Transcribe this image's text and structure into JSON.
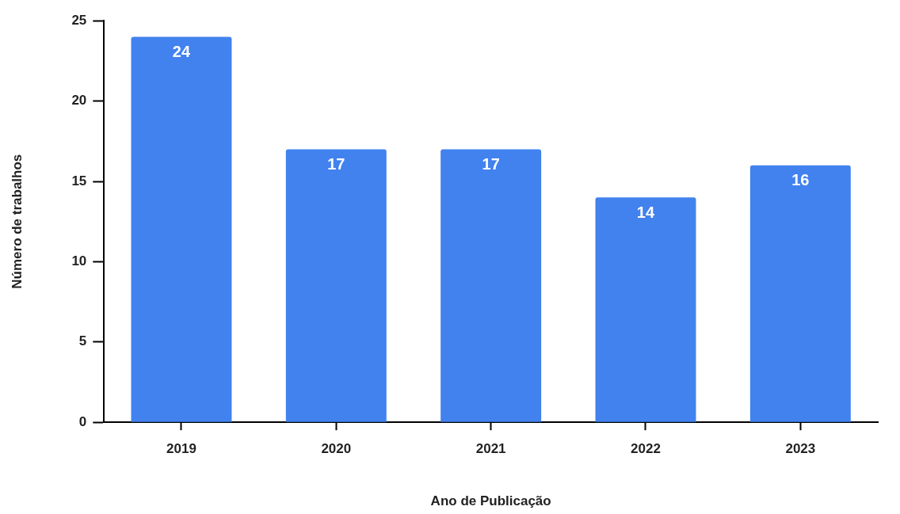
{
  "chart_data": {
    "type": "bar",
    "xlabel": "Ano de Publicação",
    "ylabel": "Número de trabalhos",
    "categories": [
      "2019",
      "2020",
      "2021",
      "2022",
      "2023"
    ],
    "values": [
      24,
      17,
      17,
      14,
      16
    ],
    "color": "#4282ef",
    "ylim": [
      0,
      25
    ],
    "yticks": [
      0,
      5,
      10,
      15,
      20,
      25
    ],
    "grid": false,
    "legend": false,
    "data_labels": true
  }
}
